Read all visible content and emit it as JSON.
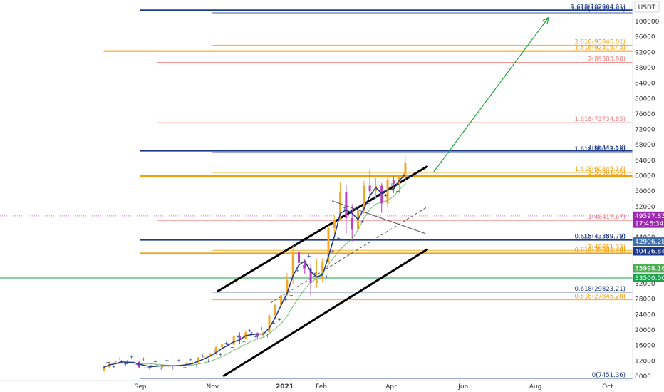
{
  "currency": "USDT",
  "price_axis": {
    "min": 8000,
    "max": 104000,
    "ticks": [
      8000,
      12000,
      16000,
      20000,
      24000,
      28000,
      32000,
      36000,
      40000,
      44000,
      48000,
      52000,
      56000,
      60000,
      64000,
      68000,
      72000,
      76000,
      80000,
      84000,
      88000,
      92000,
      96000,
      100000
    ]
  },
  "time_axis": {
    "labels": [
      {
        "text": "Sep",
        "date": "2020-09-01",
        "bold": false
      },
      {
        "text": "Nov",
        "date": "2020-11-01",
        "bold": false
      },
      {
        "text": "2021",
        "date": "2021-01-01",
        "bold": true
      },
      {
        "text": "Feb",
        "date": "2021-02-01",
        "bold": false
      },
      {
        "text": "Apr",
        "date": "2021-04-01",
        "bold": false
      },
      {
        "text": "Jun",
        "date": "2021-06-01",
        "bold": false
      },
      {
        "text": "Aug",
        "date": "2021-08-01",
        "bold": false
      },
      {
        "text": "Oct",
        "date": "2021-10-01",
        "bold": false
      }
    ]
  },
  "fib_levels": [
    {
      "label": "1.618(102904.01)",
      "price": 102904.01,
      "color": "#1e3a8a",
      "start": "2020-09-01",
      "thick": true
    },
    {
      "label": "2.618(102224.03)",
      "price": 102224.03,
      "color": "#1e3a8a",
      "start": "2020-11-01",
      "thick": false
    },
    {
      "label": "2.618(93845.01)",
      "price": 93845.01,
      "color": "#f59e0b",
      "start": "2020-11-01",
      "thick": false
    },
    {
      "label": "1.618(92315.43)",
      "price": 92315.43,
      "color": "#f59e0b",
      "start": "2020-08-01",
      "thick": true
    },
    {
      "label": "2(89383.98)",
      "price": 89383.98,
      "color": "#f08080",
      "start": "2020-09-15",
      "thick": false
    },
    {
      "label": "1.618(73734.85)",
      "price": 73734.85,
      "color": "#f08080",
      "start": "2020-09-15",
      "thick": false
    },
    {
      "label": "1(66445.58)",
      "price": 66445.58,
      "color": "#1e3a8a",
      "start": "2020-09-01",
      "thick": true
    },
    {
      "label": "1.618(66013.28)",
      "price": 66013.28,
      "color": "#1e3a8a",
      "start": "2020-11-01",
      "thick": false
    },
    {
      "label": "1.618(60845.14)",
      "price": 60845.14,
      "color": "#f59e0b",
      "start": "2020-11-01",
      "thick": false
    },
    {
      "label": "1(59901.35)",
      "price": 59901.35,
      "color": "#f59e0b",
      "start": "2020-09-01",
      "thick": true
    },
    {
      "label": "1(48417.67)",
      "price": 48417.67,
      "color": "#f08080",
      "start": "2020-09-15",
      "thick": false
    },
    {
      "label": "0.618(43389.79)",
      "price": 43389.79,
      "color": "#1e3a8a",
      "start": "2020-11-01",
      "thick": false
    },
    {
      "label": "0.5(43359.72)",
      "price": 43359.72,
      "color": "#1e3a8a",
      "start": "2020-09-01",
      "thick": true
    },
    {
      "label": "1(40651.33)",
      "price": 40651.33,
      "color": "#f59e0b",
      "start": "2020-11-01",
      "thick": false
    },
    {
      "label": "0.618(39883.48)",
      "price": 39883.48,
      "color": "#f59e0b",
      "start": "2020-09-01",
      "thick": true
    },
    {
      "label": "0.618(29823.21)",
      "price": 29823.21,
      "color": "#1e3a8a",
      "start": "2020-11-01",
      "thick": false
    },
    {
      "label": "0.618(27845.28)",
      "price": 27845.28,
      "color": "#f59e0b",
      "start": "2020-11-01",
      "thick": false
    },
    {
      "label": "0(7451.36)",
      "price": 7451.36,
      "color": "#1e3a8a",
      "start": "2020-09-01",
      "thick": false
    }
  ],
  "horizontal_green": {
    "price": 33500,
    "color": "#16a34a"
  },
  "price_tags": [
    {
      "text": "49597.83",
      "price": 49597.83,
      "bg": "#9c27b0"
    },
    {
      "text": "17:46:34",
      "price": 47600,
      "bg": "#9c27b0"
    },
    {
      "text": "42906.28",
      "price": 42906.28,
      "bg": "#3d6fb0"
    },
    {
      "text": "40426.84",
      "price": 40426.84,
      "bg": "#1e3a8a"
    },
    {
      "text": "35998.16",
      "price": 35998.16,
      "bg": "#4caf50"
    },
    {
      "text": "33500.00",
      "price": 33500,
      "bg": "#16a34a"
    }
  ],
  "channel": {
    "upper": [
      {
        "date": "2020-11-05",
        "price": 30000
      },
      {
        "date": "2021-05-02",
        "price": 62500
      }
    ],
    "lower": [
      {
        "date": "2020-11-10",
        "price": 8000
      },
      {
        "date": "2021-05-02",
        "price": 41000
      }
    ],
    "mid": [
      {
        "date": "2020-12-20",
        "price": 27000
      },
      {
        "date": "2021-05-02",
        "price": 52000
      }
    ]
  },
  "projection_arrow": [
    {
      "date": "2021-05-07",
      "price": 61000
    },
    {
      "date": "2021-08-12",
      "price": 101000
    }
  ],
  "resistance_line": [
    {
      "date": "2021-02-10",
      "price": 53500
    },
    {
      "date": "2021-04-30",
      "price": 45000
    }
  ],
  "chart_data": {
    "type": "candlestick",
    "candles": [
      {
        "date": "2020-08-01",
        "o": 9400,
        "h": 10700,
        "l": 9300,
        "c": 10300
      },
      {
        "date": "2020-08-06",
        "o": 10300,
        "h": 11900,
        "l": 10000,
        "c": 11600
      },
      {
        "date": "2020-08-11",
        "o": 11600,
        "h": 12100,
        "l": 11100,
        "c": 11900
      },
      {
        "date": "2020-08-16",
        "o": 11900,
        "h": 12200,
        "l": 11400,
        "c": 11700
      },
      {
        "date": "2020-08-21",
        "o": 11700,
        "h": 12200,
        "l": 11200,
        "c": 11400
      },
      {
        "date": "2020-08-26",
        "o": 11400,
        "h": 12000,
        "l": 11100,
        "c": 11700
      },
      {
        "date": "2020-08-31",
        "o": 11700,
        "h": 12100,
        "l": 10100,
        "c": 10300
      },
      {
        "date": "2020-09-05",
        "o": 10300,
        "h": 10600,
        "l": 9900,
        "c": 10300
      },
      {
        "date": "2020-09-10",
        "o": 10300,
        "h": 11000,
        "l": 10200,
        "c": 10900
      },
      {
        "date": "2020-09-15",
        "o": 10900,
        "h": 11100,
        "l": 10500,
        "c": 10600
      },
      {
        "date": "2020-09-20",
        "o": 10600,
        "h": 10800,
        "l": 10200,
        "c": 10700
      },
      {
        "date": "2020-09-25",
        "o": 10700,
        "h": 10900,
        "l": 10500,
        "c": 10800
      },
      {
        "date": "2020-09-30",
        "o": 10800,
        "h": 10900,
        "l": 10500,
        "c": 10700
      },
      {
        "date": "2020-10-05",
        "o": 10700,
        "h": 11000,
        "l": 10600,
        "c": 10900
      },
      {
        "date": "2020-10-10",
        "o": 10900,
        "h": 11700,
        "l": 10900,
        "c": 11400
      },
      {
        "date": "2020-10-15",
        "o": 11400,
        "h": 11800,
        "l": 11300,
        "c": 11500
      },
      {
        "date": "2020-10-20",
        "o": 11500,
        "h": 13000,
        "l": 11400,
        "c": 12900
      },
      {
        "date": "2020-10-25",
        "o": 12900,
        "h": 13800,
        "l": 12800,
        "c": 13100
      },
      {
        "date": "2020-10-30",
        "o": 13100,
        "h": 14100,
        "l": 13000,
        "c": 13800
      },
      {
        "date": "2020-11-04",
        "o": 13800,
        "h": 15900,
        "l": 13500,
        "c": 15600
      },
      {
        "date": "2020-11-09",
        "o": 15600,
        "h": 16400,
        "l": 14800,
        "c": 16300
      },
      {
        "date": "2020-11-14",
        "o": 16300,
        "h": 16600,
        "l": 15700,
        "c": 16200
      },
      {
        "date": "2020-11-19",
        "o": 16200,
        "h": 18800,
        "l": 16100,
        "c": 18400
      },
      {
        "date": "2020-11-24",
        "o": 18400,
        "h": 19400,
        "l": 16500,
        "c": 17800
      },
      {
        "date": "2020-11-29",
        "o": 17800,
        "h": 19900,
        "l": 17600,
        "c": 19400
      },
      {
        "date": "2020-12-04",
        "o": 19400,
        "h": 19500,
        "l": 18600,
        "c": 19200
      },
      {
        "date": "2020-12-09",
        "o": 19200,
        "h": 19400,
        "l": 17600,
        "c": 18300
      },
      {
        "date": "2020-12-14",
        "o": 18300,
        "h": 19600,
        "l": 18200,
        "c": 19400
      },
      {
        "date": "2020-12-19",
        "o": 19400,
        "h": 24200,
        "l": 19300,
        "c": 23800
      },
      {
        "date": "2020-12-24",
        "o": 23800,
        "h": 26900,
        "l": 22700,
        "c": 26500
      },
      {
        "date": "2020-12-29",
        "o": 26500,
        "h": 29300,
        "l": 25800,
        "c": 29000
      },
      {
        "date": "2021-01-03",
        "o": 29000,
        "h": 34800,
        "l": 28800,
        "c": 33000
      },
      {
        "date": "2021-01-08",
        "o": 33000,
        "h": 41900,
        "l": 32000,
        "c": 40200
      },
      {
        "date": "2021-01-13",
        "o": 40200,
        "h": 40900,
        "l": 30300,
        "c": 37400
      },
      {
        "date": "2021-01-18",
        "o": 37400,
        "h": 38500,
        "l": 34500,
        "c": 36000
      },
      {
        "date": "2021-01-23",
        "o": 36000,
        "h": 37200,
        "l": 29000,
        "c": 32200
      },
      {
        "date": "2021-01-28",
        "o": 32200,
        "h": 38500,
        "l": 30900,
        "c": 33100
      },
      {
        "date": "2021-02-02",
        "o": 33100,
        "h": 38600,
        "l": 32300,
        "c": 37600
      },
      {
        "date": "2021-02-07",
        "o": 37600,
        "h": 47300,
        "l": 37300,
        "c": 46400
      },
      {
        "date": "2021-02-12",
        "o": 46400,
        "h": 49700,
        "l": 45000,
        "c": 48600
      },
      {
        "date": "2021-02-17",
        "o": 48600,
        "h": 58300,
        "l": 48300,
        "c": 55800
      },
      {
        "date": "2021-02-22",
        "o": 55800,
        "h": 57500,
        "l": 45000,
        "c": 49000
      },
      {
        "date": "2021-02-27",
        "o": 49000,
        "h": 52600,
        "l": 43000,
        "c": 46000
      },
      {
        "date": "2021-03-04",
        "o": 46000,
        "h": 51700,
        "l": 44900,
        "c": 50900
      },
      {
        "date": "2021-03-09",
        "o": 50900,
        "h": 58700,
        "l": 50100,
        "c": 57400
      },
      {
        "date": "2021-03-14",
        "o": 57400,
        "h": 61700,
        "l": 55100,
        "c": 56000
      },
      {
        "date": "2021-03-19",
        "o": 56000,
        "h": 59400,
        "l": 54000,
        "c": 57400
      },
      {
        "date": "2021-03-24",
        "o": 57400,
        "h": 58000,
        "l": 50400,
        "c": 52800
      },
      {
        "date": "2021-03-29",
        "o": 52800,
        "h": 59800,
        "l": 51700,
        "c": 58800
      },
      {
        "date": "2021-04-03",
        "o": 58800,
        "h": 60000,
        "l": 55500,
        "c": 57800
      },
      {
        "date": "2021-04-08",
        "o": 57800,
        "h": 60300,
        "l": 55400,
        "c": 59800
      },
      {
        "date": "2021-04-13",
        "o": 59800,
        "h": 64900,
        "l": 57800,
        "c": 63300
      }
    ]
  }
}
